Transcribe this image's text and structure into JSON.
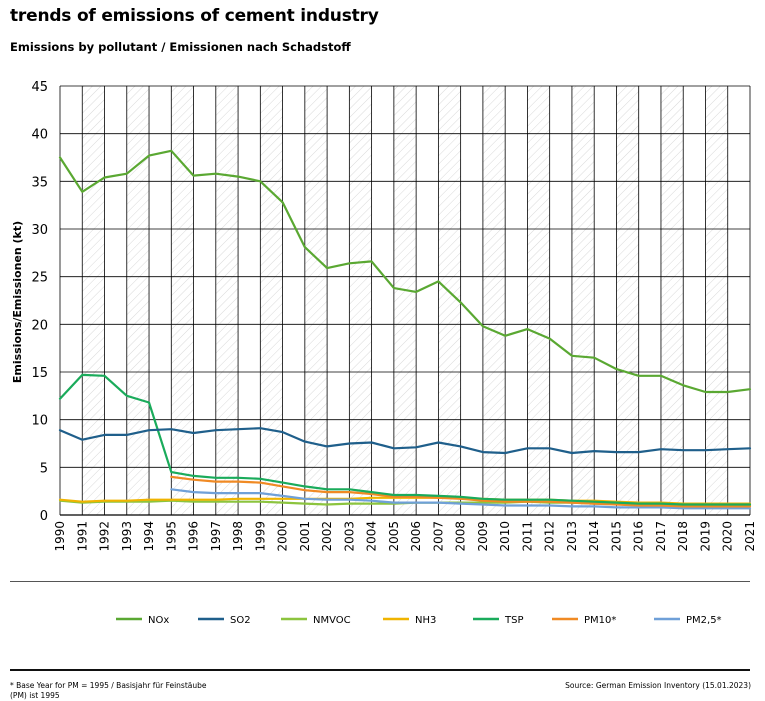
{
  "title": "trends of emissions of cement industry",
  "subtitle": "Emissions by pollutant / Emissionen nach Schadstoff",
  "footnote": "* Base Year for PM = 1995 / Basisjahr für Feinstäube (PM) ist 1995",
  "source": "Source: German Emission Inventory (15.01.2023)",
  "chart_data": {
    "type": "line",
    "title": "trends of emissions of cement industry",
    "subtitle": "Emissions by pollutant / Emissionen nach Schadstoff",
    "xlabel": "",
    "ylabel": "Emissions/Emissionen (kt)",
    "ylim": [
      0,
      45
    ],
    "yticks": [
      0,
      5,
      10,
      15,
      20,
      25,
      30,
      35,
      40,
      45
    ],
    "grid": true,
    "legend_position": "bottom",
    "x": [
      1990,
      1991,
      1992,
      1993,
      1994,
      1995,
      1996,
      1997,
      1998,
      1999,
      2000,
      2001,
      2002,
      2003,
      2004,
      2005,
      2006,
      2007,
      2008,
      2009,
      2010,
      2011,
      2012,
      2013,
      2014,
      2015,
      2016,
      2017,
      2018,
      2019,
      2020,
      2021
    ],
    "series": [
      {
        "name": "NOx",
        "color": "#5aa832",
        "width": 2.2,
        "values": [
          37.5,
          33.9,
          35.4,
          35.8,
          37.7,
          38.2,
          35.6,
          35.8,
          35.5,
          35.0,
          32.8,
          28.1,
          25.9,
          26.4,
          26.6,
          23.8,
          23.4,
          24.5,
          22.3,
          19.8,
          18.8,
          19.5,
          18.5,
          16.7,
          16.5,
          15.3,
          14.6,
          14.6,
          13.6,
          12.9,
          12.9,
          13.2
        ]
      },
      {
        "name": "SO2",
        "color": "#1f5f8b",
        "width": 2.2,
        "values": [
          8.9,
          7.9,
          8.4,
          8.4,
          8.9,
          9.0,
          8.6,
          8.9,
          9.0,
          9.1,
          8.7,
          7.7,
          7.2,
          7.5,
          7.6,
          7.0,
          7.1,
          7.6,
          7.2,
          6.6,
          6.5,
          7.0,
          7.0,
          6.5,
          6.7,
          6.6,
          6.6,
          6.9,
          6.8,
          6.8,
          6.9,
          7.0
        ]
      },
      {
        "name": "NMVOC",
        "color": "#8cc43e",
        "width": 2.2,
        "values": [
          1.5,
          1.3,
          1.4,
          1.4,
          1.4,
          1.5,
          1.4,
          1.4,
          1.4,
          1.4,
          1.3,
          1.2,
          1.1,
          1.2,
          1.2,
          1.2,
          1.3,
          1.3,
          1.3,
          1.3,
          1.3,
          1.4,
          1.3,
          1.3,
          1.2,
          1.2,
          1.1,
          1.1,
          1.0,
          1.0,
          1.0,
          1.0
        ]
      },
      {
        "name": "NH3",
        "color": "#f0b400",
        "width": 2.2,
        "values": [
          1.6,
          1.4,
          1.5,
          1.5,
          1.6,
          1.6,
          1.6,
          1.6,
          1.7,
          1.7,
          1.7,
          1.7,
          1.7,
          1.7,
          1.8,
          1.8,
          1.8,
          1.8,
          1.8,
          1.7,
          1.6,
          1.6,
          1.6,
          1.5,
          1.5,
          1.4,
          1.3,
          1.3,
          1.2,
          1.2,
          1.2,
          1.2
        ]
      },
      {
        "name": "TSP",
        "color": "#1aab5b",
        "width": 2.2,
        "values": [
          12.2,
          14.7,
          14.6,
          12.5,
          11.8,
          4.5,
          4.1,
          3.9,
          3.9,
          3.8,
          3.4,
          3.0,
          2.7,
          2.7,
          2.4,
          2.1,
          2.1,
          2.0,
          1.9,
          1.7,
          1.6,
          1.6,
          1.6,
          1.5,
          1.4,
          1.3,
          1.2,
          1.2,
          1.1,
          1.1,
          1.1,
          1.1
        ]
      },
      {
        "name": "PM10*",
        "color": "#f08a24",
        "width": 2.2,
        "values": [
          null,
          null,
          null,
          null,
          null,
          4.0,
          3.7,
          3.5,
          3.5,
          3.4,
          3.0,
          2.6,
          2.4,
          2.4,
          2.2,
          1.9,
          1.9,
          1.8,
          1.7,
          1.5,
          1.4,
          1.4,
          1.4,
          1.3,
          1.2,
          1.1,
          1.0,
          1.0,
          0.9,
          0.9,
          0.9,
          0.9
        ]
      },
      {
        "name": "PM2,5*",
        "color": "#6fa0d8",
        "width": 2.2,
        "values": [
          null,
          null,
          null,
          null,
          null,
          2.7,
          2.4,
          2.3,
          2.3,
          2.3,
          2.0,
          1.7,
          1.6,
          1.6,
          1.5,
          1.3,
          1.3,
          1.3,
          1.2,
          1.1,
          1.0,
          1.0,
          1.0,
          0.9,
          0.9,
          0.8,
          0.8,
          0.8,
          0.7,
          0.7,
          0.7,
          0.7
        ]
      }
    ]
  }
}
